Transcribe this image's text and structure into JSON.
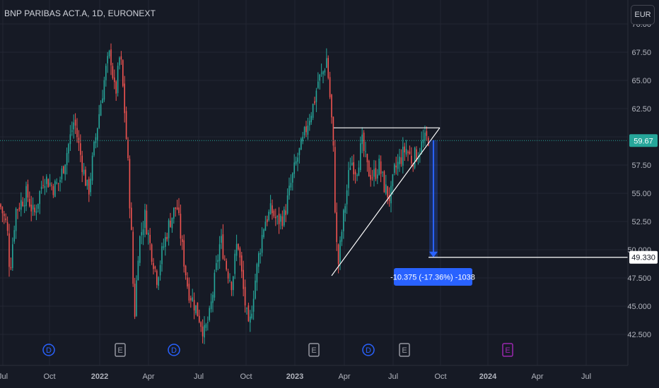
{
  "header": {
    "symbol_title": "BNP PARIBAS ACT.A, 1D, EURONEXT",
    "currency_button": "EUR"
  },
  "price_scale": {
    "last_price_label": "59.67",
    "target_price_label": "49.330"
  },
  "measure_tool": {
    "label": "-10.375 (-17.36%) -1038"
  },
  "event_markers": [
    {
      "letter": "D",
      "kind": "dividend",
      "color": "#2962ff"
    },
    {
      "letter": "E",
      "kind": "earnings",
      "color": "#9598a1"
    },
    {
      "letter": "D",
      "kind": "dividend",
      "color": "#2962ff"
    },
    {
      "letter": "E",
      "kind": "earnings",
      "color": "#9598a1"
    },
    {
      "letter": "D",
      "kind": "dividend",
      "color": "#2962ff"
    },
    {
      "letter": "E",
      "kind": "earnings",
      "color": "#9598a1"
    },
    {
      "letter": "E",
      "kind": "earnings-upcoming",
      "color": "#9c27b0"
    }
  ],
  "colors": {
    "background": "#161a25",
    "up": "#26a69a",
    "down": "#ef5350",
    "grid": "#232632",
    "last_price": "#26a69a",
    "measure": "#2962ff"
  },
  "chart_data": {
    "type": "candlestick",
    "title": "BNP PARIBAS ACT.A, 1D, EURONEXT",
    "currency": "EUR",
    "y_ticks": [
      "42.500",
      "45.000",
      "47.500",
      "50.000",
      "52.50",
      "55.00",
      "57.50",
      "60.00",
      "62.50",
      "65.00",
      "67.50",
      "70.00"
    ],
    "x_ticks": [
      "Jul",
      "Oct",
      "2022",
      "Apr",
      "Jul",
      "Oct",
      "2023",
      "Apr",
      "Jul",
      "Oct",
      "2024",
      "Apr",
      "Jul"
    ],
    "ylim": [
      41.2,
      70.2
    ],
    "last_price": 59.67,
    "path": [
      [
        0,
        54.0
      ],
      [
        10,
        52.0
      ],
      [
        14,
        48.0
      ],
      [
        22,
        53.5
      ],
      [
        38,
        55.0
      ],
      [
        48,
        53.0
      ],
      [
        62,
        56.5
      ],
      [
        76,
        55.5
      ],
      [
        84,
        56.0
      ],
      [
        94,
        58.5
      ],
      [
        105,
        61.5
      ],
      [
        112,
        59.0
      ],
      [
        118,
        57.0
      ],
      [
        125,
        55.0
      ],
      [
        132,
        58.5
      ],
      [
        140,
        62.0
      ],
      [
        150,
        66.0
      ],
      [
        156,
        67.5
      ],
      [
        163,
        63.5
      ],
      [
        170,
        67.5
      ],
      [
        176,
        62.5
      ],
      [
        181,
        57.5
      ],
      [
        186,
        51.0
      ],
      [
        190,
        43.8
      ],
      [
        196,
        50.5
      ],
      [
        205,
        53.0
      ],
      [
        212,
        50.5
      ],
      [
        222,
        47.5
      ],
      [
        230,
        50.0
      ],
      [
        240,
        52.5
      ],
      [
        250,
        54.0
      ],
      [
        258,
        50.0
      ],
      [
        266,
        46.5
      ],
      [
        276,
        45.0
      ],
      [
        282,
        44.0
      ],
      [
        289,
        42.6
      ],
      [
        296,
        44.0
      ],
      [
        304,
        47.5
      ],
      [
        312,
        51.0
      ],
      [
        320,
        48.5
      ],
      [
        328,
        47.0
      ],
      [
        336,
        51.0
      ],
      [
        344,
        46.5
      ],
      [
        352,
        42.6
      ],
      [
        358,
        46.0
      ],
      [
        366,
        49.5
      ],
      [
        374,
        52.5
      ],
      [
        384,
        53.5
      ],
      [
        392,
        52.5
      ],
      [
        402,
        53.0
      ],
      [
        412,
        56.0
      ],
      [
        420,
        58.0
      ],
      [
        428,
        59.5
      ],
      [
        436,
        61.5
      ],
      [
        444,
        63.0
      ],
      [
        450,
        65.0
      ],
      [
        456,
        65.5
      ],
      [
        462,
        67.0
      ],
      [
        468,
        62.5
      ],
      [
        471,
        59.5
      ],
      [
        475,
        51.5
      ],
      [
        478,
        48.5
      ],
      [
        484,
        52.0
      ],
      [
        490,
        55.0
      ],
      [
        496,
        58.0
      ],
      [
        504,
        57.0
      ],
      [
        512,
        59.5
      ],
      [
        520,
        57.0
      ],
      [
        528,
        56.5
      ],
      [
        536,
        57.5
      ],
      [
        544,
        55.5
      ],
      [
        552,
        54.5
      ],
      [
        558,
        57.0
      ],
      [
        566,
        58.0
      ],
      [
        574,
        59.0
      ],
      [
        582,
        58.0
      ],
      [
        590,
        58.5
      ],
      [
        598,
        59.5
      ],
      [
        606,
        59.9
      ]
    ],
    "annotations": {
      "triangle_top": 60.8,
      "triangle_apex_x_date": "late Sep 2023",
      "trendline_from": 47.7,
      "trendline_to": 60.8,
      "measure_from": 59.705,
      "measure_to": 49.33,
      "measure_change": -10.375,
      "measure_change_percent": -17.36
    }
  }
}
